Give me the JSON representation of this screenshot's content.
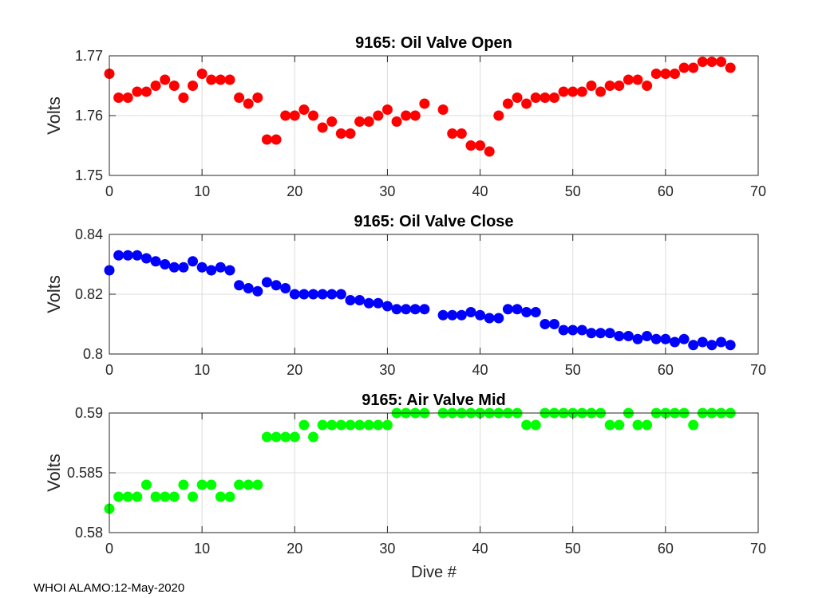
{
  "footer": "WHOI ALAMO:12-May-2020",
  "chart_data": [
    {
      "type": "scatter",
      "title": "9165: Oil Valve Open",
      "ylabel": "Volts",
      "xlabel": "",
      "color": "#ff0000",
      "xlim": [
        0,
        70
      ],
      "ylim": [
        1.75,
        1.77
      ],
      "xticks": [
        0,
        10,
        20,
        30,
        40,
        50,
        60,
        70
      ],
      "yticks": [
        1.75,
        1.76,
        1.77
      ],
      "ytick_labels": [
        "1.75",
        "1.76",
        "1.77"
      ],
      "x": [
        0,
        1,
        2,
        3,
        4,
        5,
        6,
        7,
        8,
        9,
        10,
        11,
        12,
        13,
        14,
        15,
        16,
        17,
        18,
        19,
        20,
        21,
        22,
        23,
        24,
        25,
        26,
        27,
        28,
        29,
        30,
        31,
        32,
        33,
        34,
        36,
        37,
        38,
        39,
        40,
        41,
        42,
        43,
        44,
        45,
        46,
        47,
        48,
        49,
        50,
        51,
        52,
        53,
        54,
        55,
        56,
        57,
        58,
        59,
        60,
        61,
        62,
        63,
        64,
        65,
        66,
        67
      ],
      "y": [
        1.767,
        1.763,
        1.763,
        1.764,
        1.764,
        1.765,
        1.766,
        1.765,
        1.763,
        1.765,
        1.767,
        1.766,
        1.766,
        1.766,
        1.763,
        1.762,
        1.763,
        1.756,
        1.756,
        1.76,
        1.76,
        1.761,
        1.76,
        1.758,
        1.759,
        1.757,
        1.757,
        1.759,
        1.759,
        1.76,
        1.761,
        1.759,
        1.76,
        1.76,
        1.762,
        1.761,
        1.757,
        1.757,
        1.755,
        1.755,
        1.754,
        1.76,
        1.762,
        1.763,
        1.762,
        1.763,
        1.763,
        1.763,
        1.764,
        1.764,
        1.764,
        1.765,
        1.764,
        1.765,
        1.765,
        1.766,
        1.766,
        1.765,
        1.767,
        1.767,
        1.767,
        1.768,
        1.768,
        1.769,
        1.769,
        1.769,
        1.768
      ]
    },
    {
      "type": "scatter",
      "title": "9165: Oil Valve Close",
      "ylabel": "Volts",
      "xlabel": "",
      "color": "#0000ff",
      "xlim": [
        0,
        70
      ],
      "ylim": [
        0.8,
        0.84
      ],
      "xticks": [
        0,
        10,
        20,
        30,
        40,
        50,
        60,
        70
      ],
      "yticks": [
        0.8,
        0.82,
        0.84
      ],
      "ytick_labels": [
        "0.8",
        "0.82",
        "0.84"
      ],
      "x": [
        0,
        1,
        2,
        3,
        4,
        5,
        6,
        7,
        8,
        9,
        10,
        11,
        12,
        13,
        14,
        15,
        16,
        17,
        18,
        19,
        20,
        21,
        22,
        23,
        24,
        25,
        26,
        27,
        28,
        29,
        30,
        31,
        32,
        33,
        34,
        36,
        37,
        38,
        39,
        40,
        41,
        42,
        43,
        44,
        45,
        46,
        47,
        48,
        49,
        50,
        51,
        52,
        53,
        54,
        55,
        56,
        57,
        58,
        59,
        60,
        61,
        62,
        63,
        64,
        65,
        66,
        67
      ],
      "y": [
        0.828,
        0.833,
        0.833,
        0.833,
        0.832,
        0.831,
        0.83,
        0.829,
        0.829,
        0.831,
        0.829,
        0.828,
        0.829,
        0.828,
        0.823,
        0.822,
        0.821,
        0.824,
        0.823,
        0.822,
        0.82,
        0.82,
        0.82,
        0.82,
        0.82,
        0.82,
        0.818,
        0.818,
        0.817,
        0.817,
        0.816,
        0.815,
        0.815,
        0.815,
        0.815,
        0.813,
        0.813,
        0.813,
        0.814,
        0.813,
        0.812,
        0.812,
        0.815,
        0.815,
        0.814,
        0.814,
        0.81,
        0.81,
        0.808,
        0.808,
        0.808,
        0.807,
        0.807,
        0.807,
        0.806,
        0.806,
        0.805,
        0.806,
        0.805,
        0.805,
        0.804,
        0.805,
        0.803,
        0.804,
        0.803,
        0.804,
        0.803
      ]
    },
    {
      "type": "scatter",
      "title": "9165: Air Valve Mid",
      "ylabel": "Volts",
      "xlabel": "Dive #",
      "color": "#00ff00",
      "xlim": [
        0,
        70
      ],
      "ylim": [
        0.58,
        0.59
      ],
      "xticks": [
        0,
        10,
        20,
        30,
        40,
        50,
        60,
        70
      ],
      "yticks": [
        0.58,
        0.585,
        0.59
      ],
      "ytick_labels": [
        "0.58",
        "0.585",
        "0.59"
      ],
      "x": [
        0,
        1,
        2,
        3,
        4,
        5,
        6,
        7,
        8,
        9,
        10,
        11,
        12,
        13,
        14,
        15,
        16,
        17,
        18,
        19,
        20,
        21,
        22,
        23,
        24,
        25,
        26,
        27,
        28,
        29,
        30,
        31,
        32,
        33,
        34,
        36,
        37,
        38,
        39,
        40,
        41,
        42,
        43,
        44,
        45,
        46,
        47,
        48,
        49,
        50,
        51,
        52,
        53,
        54,
        55,
        56,
        57,
        58,
        59,
        60,
        61,
        62,
        63,
        64,
        65,
        66,
        67
      ],
      "y": [
        0.582,
        0.583,
        0.583,
        0.583,
        0.584,
        0.583,
        0.583,
        0.583,
        0.584,
        0.583,
        0.584,
        0.584,
        0.583,
        0.583,
        0.584,
        0.584,
        0.584,
        0.588,
        0.588,
        0.588,
        0.588,
        0.589,
        0.588,
        0.589,
        0.589,
        0.589,
        0.589,
        0.589,
        0.589,
        0.589,
        0.589,
        0.59,
        0.59,
        0.59,
        0.59,
        0.59,
        0.59,
        0.59,
        0.59,
        0.59,
        0.59,
        0.59,
        0.59,
        0.59,
        0.589,
        0.589,
        0.59,
        0.59,
        0.59,
        0.59,
        0.59,
        0.59,
        0.59,
        0.589,
        0.589,
        0.59,
        0.589,
        0.589,
        0.59,
        0.59,
        0.59,
        0.59,
        0.589,
        0.59,
        0.59,
        0.59,
        0.59
      ]
    }
  ]
}
